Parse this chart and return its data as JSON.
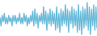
{
  "values": [
    1,
    -3,
    2,
    -1,
    3,
    -2,
    1,
    -2,
    2,
    -1,
    1,
    -3,
    2,
    -1,
    2,
    -2,
    1,
    -1,
    3,
    -2,
    1,
    -2,
    3,
    -1,
    2,
    -3,
    1,
    -2,
    2,
    -1,
    4,
    -3,
    5,
    -2,
    3,
    -4,
    2,
    -1,
    3,
    -2,
    6,
    -2,
    4,
    -5,
    3,
    -2,
    5,
    -3,
    4,
    -2,
    3,
    -5,
    6,
    -4,
    3,
    -6,
    5,
    -3,
    4,
    -2,
    7,
    -3,
    5,
    -6,
    4,
    -2,
    6,
    -4,
    5,
    -3,
    4,
    -6,
    7,
    -5,
    4,
    -7,
    6,
    -4,
    5,
    -3,
    8,
    -5,
    6,
    -7,
    5,
    -3,
    7,
    -5,
    6,
    -4
  ],
  "line_color": "#5ab4d6",
  "fill_color": "#5ab4d6",
  "fill_alpha": 0.5,
  "background_color": "#ffffff",
  "linewidth": 0.6
}
